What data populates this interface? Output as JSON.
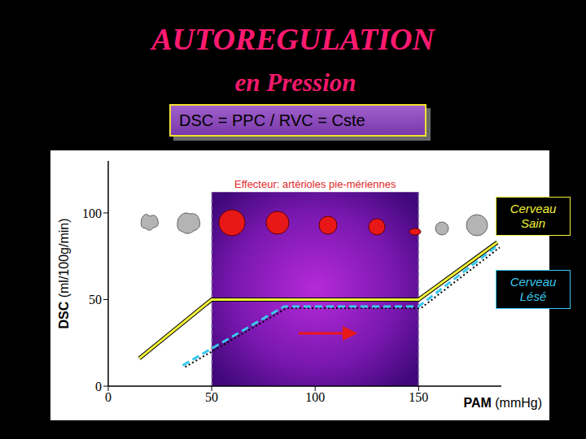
{
  "chart_data": {
    "type": "line",
    "title": "AUTOREGULATION",
    "subtitle": "en Pression",
    "annotations": [
      "DSC = PPC / RVC = Cste"
    ],
    "x_label": "PAM (mmHg)",
    "y_label": "DSC (ml/100g/min)",
    "xlim": [
      0,
      190
    ],
    "xticks": [
      0,
      50,
      100,
      150
    ],
    "ylim": [
      0,
      130
    ],
    "yticks": [
      0,
      50,
      100
    ],
    "grid": false,
    "legend": "right",
    "region": {
      "x": [
        50,
        150
      ],
      "y": [
        0,
        112
      ],
      "label": "Effecteur: artérioles pie-mériennes"
    },
    "series": [
      {
        "name": "Cerveau Sain",
        "color": "#f2f23a",
        "line_style": "solid",
        "x": [
          15,
          50,
          150,
          188
        ],
        "values": [
          16,
          50,
          50,
          83
        ]
      },
      {
        "name": "Cerveau Lésé",
        "color": "#38c8ee",
        "line_style": "dashed",
        "x": [
          36,
          85,
          150,
          188
        ],
        "values": [
          12,
          46,
          46,
          81
        ]
      }
    ]
  }
}
